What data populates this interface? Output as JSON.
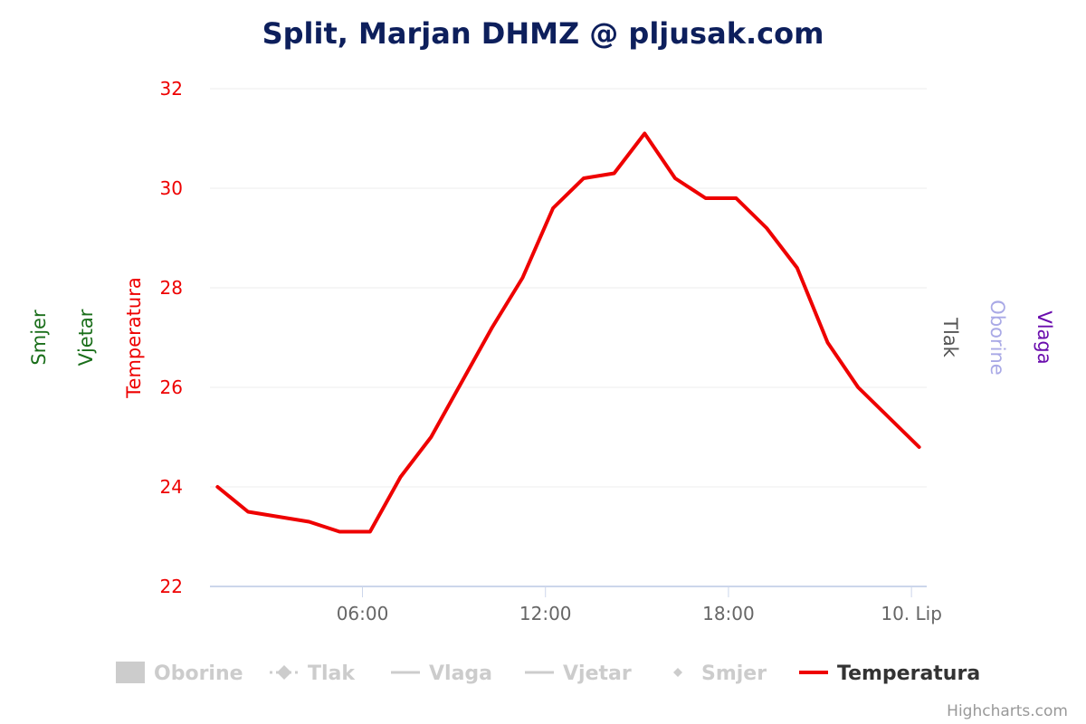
{
  "colors": {
    "title": "#0d1f5c",
    "temperature": "#ee0000",
    "wind": "#1a6e1a",
    "pressure": "#555555",
    "precipitation": "#a9a9e6",
    "humidity": "#6a0dad",
    "legend_inactive": "#cccccc",
    "legend_active": "#333333",
    "grid": "#ececec",
    "axis_line": "#ccd6eb",
    "x_tick_text": "#666666",
    "credit": "#999999"
  },
  "legend": {
    "items": [
      {
        "label": "Oborine",
        "icon": "bar-icon",
        "active": false
      },
      {
        "label": "Tlak",
        "icon": "dash-dot-diamond-icon",
        "active": false
      },
      {
        "label": "Vlaga",
        "icon": "line-icon",
        "active": false
      },
      {
        "label": "Vjetar",
        "icon": "line-icon",
        "active": false
      },
      {
        "label": "Smjer",
        "icon": "diamond-icon",
        "active": false
      },
      {
        "label": "Temperatura",
        "icon": "line-icon",
        "active": true
      }
    ]
  },
  "credit": "Highcharts.com",
  "chart_data": {
    "type": "line",
    "title": "Split, Marjan DHMZ @ pljusak.com",
    "y_axes_left": [
      "Smjer",
      "Vjetar",
      "Temperatura"
    ],
    "y_axes_right": [
      "Tlak",
      "Oborine",
      "Vlaga"
    ],
    "ylabel": "Temperatura",
    "ylim": [
      22,
      32
    ],
    "yticks": [
      "22",
      "24",
      "26",
      "28",
      "30",
      "32"
    ],
    "xlim": [
      1,
      24.5
    ],
    "xticks": [
      {
        "x": 6,
        "label": "06:00"
      },
      {
        "x": 12,
        "label": "12:00"
      },
      {
        "x": 18,
        "label": "18:00"
      },
      {
        "x": 24,
        "label": "10. Lip"
      }
    ],
    "series": [
      {
        "name": "Temperatura",
        "x": [
          1.25,
          2.25,
          3.25,
          4.25,
          5.25,
          6.25,
          7.25,
          8.25,
          9.25,
          10.25,
          11.25,
          12.25,
          13.25,
          14.25,
          15.25,
          16.25,
          17.25,
          18.25,
          19.25,
          20.25,
          21.25,
          22.25,
          23.25,
          24.25
        ],
        "values": [
          24.0,
          23.5,
          23.4,
          23.3,
          23.1,
          23.1,
          24.2,
          25.0,
          26.1,
          27.2,
          28.2,
          29.6,
          30.2,
          30.3,
          31.1,
          30.2,
          29.8,
          29.8,
          29.2,
          28.4,
          26.9,
          26.0,
          25.4,
          24.8
        ]
      }
    ]
  }
}
